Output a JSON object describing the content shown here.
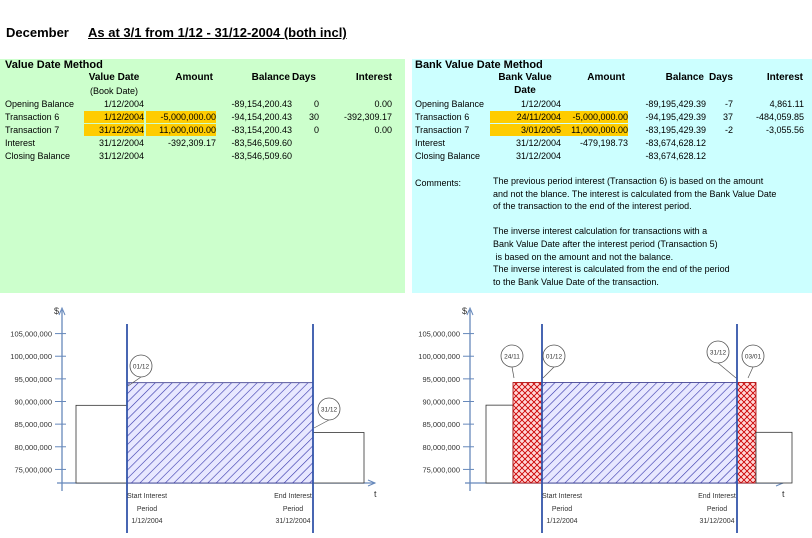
{
  "header": {
    "month": "December",
    "subtitle": "As at 3/1 from 1/12 - 31/12-2004 (both incl)"
  },
  "left_table": {
    "title": "Value Date Method",
    "col_value_date": "Value Date",
    "col_value_date_sub": "(Book Date)",
    "col_amount": "Amount",
    "col_balance": "Balance",
    "col_days": "Days",
    "col_interest": "Interest",
    "rows": [
      {
        "label": "Opening Balance",
        "date": "1/12/2004",
        "amount": "",
        "balance": "-89,154,200.43",
        "days": "0",
        "interest": "0.00",
        "hl": false
      },
      {
        "label": "Transaction 6",
        "date": "1/12/2004",
        "amount": "-5,000,000.00",
        "balance": "-94,154,200.43",
        "days": "30",
        "interest": "-392,309.17",
        "hl": true
      },
      {
        "label": "Transaction 7",
        "date": "31/12/2004",
        "amount": "11,000,000.00",
        "balance": "-83,154,200.43",
        "days": "0",
        "interest": "0.00",
        "hl": true
      },
      {
        "label": "Interest",
        "date": "31/12/2004",
        "amount": "-392,309.17",
        "balance": "-83,546,509.60",
        "days": "",
        "interest": "",
        "hl": false
      },
      {
        "label": "Closing Balance",
        "date": "31/12/2004",
        "amount": "",
        "balance": "-83,546,509.60",
        "days": "",
        "interest": "",
        "hl": false
      }
    ]
  },
  "right_table": {
    "title": "Bank Value Date Method",
    "col_value_date": "Bank Value",
    "col_value_date_sub": "Date",
    "col_amount": "Amount",
    "col_balance": "Balance",
    "col_days": "Days",
    "col_interest": "Interest",
    "rows": [
      {
        "label": "Opening Balance",
        "date": "1/12/2004",
        "amount": "",
        "balance": "-89,195,429.39",
        "days": "-7",
        "interest": "4,861.11",
        "hl": false
      },
      {
        "label": "Transaction 6",
        "date": "24/11/2004",
        "amount": "-5,000,000.00",
        "balance": "-94,195,429.39",
        "days": "37",
        "interest": "-484,059.85",
        "hl": true
      },
      {
        "label": "Transaction 7",
        "date": "3/01/2005",
        "amount": "11,000,000.00",
        "balance": "-83,195,429.39",
        "days": "-2",
        "interest": "-3,055.56",
        "hl": true
      },
      {
        "label": "Interest",
        "date": "31/12/2004",
        "amount": "-479,198.73",
        "balance": "-83,674,628.12",
        "days": "",
        "interest": "",
        "hl": false
      },
      {
        "label": "Closing Balance",
        "date": "31/12/2004",
        "amount": "",
        "balance": "-83,674,628.12",
        "days": "",
        "interest": "",
        "hl": false
      }
    ],
    "comments_label": "Comments:",
    "comments_text": "The previous period interest (Transaction 6) is based on the amount\nand not the blance. The interest is calculated from the Bank Value Date\nof the transaction to the end of the interest period.\n\nThe inverse interest calculation for transactions with a\nBank Value Date after the interest period (Transaction 5)\n is based on the amount and not the balance.\nThe inverse interest is calculated from the end of the period\nto the Bank Value Date of the transaction."
  },
  "charts": {
    "ylabel": "$",
    "xlabel": "t",
    "y_ticks": [
      "105,000,000",
      "100,000,000",
      "95,000,000",
      "90,000,000",
      "85,000,000",
      "80,000,000",
      "75,000,000"
    ],
    "start_label_1": "Start Interest",
    "start_label_2": "Period",
    "start_date": "1/12/2004",
    "end_label_1": "End Interest",
    "end_label_2": "Period",
    "end_date": "31/12/2004",
    "left_bubbles": [
      "01/12",
      "31/12"
    ],
    "right_bubbles": [
      "24/11",
      "01/12",
      "31/12",
      "03/01"
    ]
  },
  "chart_data": [
    {
      "type": "area",
      "title": "",
      "xlabel": "t",
      "ylabel": "$",
      "ylim": [
        72000000,
        108000000
      ],
      "y_ticks": [
        105000000,
        100000000,
        95000000,
        90000000,
        85000000,
        80000000,
        75000000
      ],
      "bars": [
        {
          "segment": "before period",
          "value": 89154200.43
        },
        {
          "segment": "interest period 01/12-31/12",
          "value": 94154200.43,
          "hatched": true
        },
        {
          "segment": "after period",
          "value": 83154200.43
        }
      ]
    },
    {
      "type": "area",
      "title": "",
      "xlabel": "t",
      "ylabel": "$",
      "ylim": [
        72000000,
        108000000
      ],
      "y_ticks": [
        105000000,
        100000000,
        95000000,
        90000000,
        85000000,
        80000000,
        75000000
      ],
      "bars": [
        {
          "segment": "before period",
          "value": 89195429.39
        },
        {
          "segment": "24/11-01/12",
          "value": 94195429.39,
          "crosshatched": true
        },
        {
          "segment": "interest period 01/12-31/12",
          "value": 94195429.39,
          "hatched": true
        },
        {
          "segment": "31/12-03/01",
          "value": 94195429.39,
          "crosshatched": true
        },
        {
          "segment": "after period",
          "value": 83195429.39
        }
      ]
    }
  ]
}
